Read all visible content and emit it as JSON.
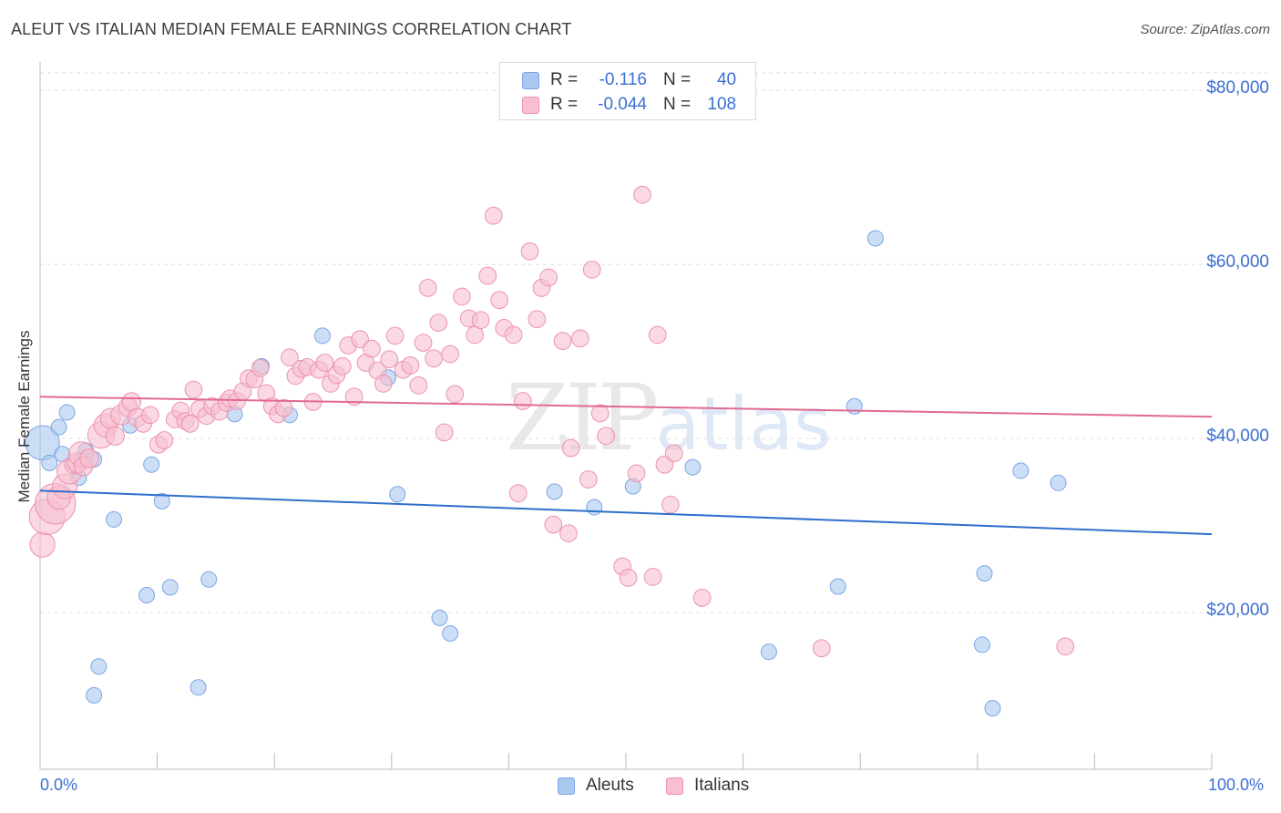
{
  "title": "ALEUT VS ITALIAN MEDIAN FEMALE EARNINGS CORRELATION CHART",
  "source": "Source: ZipAtlas.com",
  "watermark": {
    "zip": "ZIP",
    "atlas": "atlas"
  },
  "legend_top": [
    {
      "series": "Aleuts",
      "r_label": "R =",
      "r_value": "-0.116",
      "n_label": "N =",
      "n_value": "40"
    },
    {
      "series": "Italians",
      "r_label": "R =",
      "r_value": "-0.044",
      "n_label": "N =",
      "n_value": "108"
    }
  ],
  "legend_bottom": [
    "Aleuts",
    "Italians"
  ],
  "colors": {
    "aleut_fill": "#aac8f0",
    "aleut_stroke": "#7aa6e4",
    "aleut_line": "#2f6fcc",
    "italian_fill": "#f7bfd0",
    "italian_stroke": "#ec93b0",
    "italian_line": "#e06a92",
    "axis_text": "#3a6fd4",
    "grid": "#dddddd"
  },
  "chart_data": {
    "type": "scatter",
    "title": "ALEUT VS ITALIAN MEDIAN FEMALE EARNINGS CORRELATION CHART",
    "xlabel": "",
    "ylabel": "Median Female Earnings",
    "xlim": [
      0,
      100
    ],
    "ylim": [
      2000,
      82000
    ],
    "x_tick_labels": {
      "min": "0.0%",
      "max": "100.0%"
    },
    "y_ticks": [
      {
        "value": 20000,
        "label": "$20,000"
      },
      {
        "value": 40000,
        "label": "$40,000"
      },
      {
        "value": 60000,
        "label": "$60,000"
      },
      {
        "value": 80000,
        "label": "$80,000"
      }
    ],
    "series": [
      {
        "name": "Aleuts",
        "trend": {
          "x0": 0,
          "y0": 34000,
          "x1": 100,
          "y1": 29000
        },
        "points": [
          [
            0.2,
            39500,
            2.2
          ],
          [
            0.8,
            37200,
            1
          ],
          [
            1.6,
            41300,
            1
          ],
          [
            1.9,
            38200,
            1
          ],
          [
            2.3,
            43000,
            1
          ],
          [
            3.5,
            37500,
            1
          ],
          [
            3.3,
            35500,
            1
          ],
          [
            3.9,
            38600,
            1
          ],
          [
            4.6,
            37600,
            1
          ],
          [
            5.0,
            13800,
            1
          ],
          [
            4.6,
            10500,
            1
          ],
          [
            6.3,
            30700,
            1
          ],
          [
            7.7,
            41500,
            1
          ],
          [
            9.1,
            22000,
            1
          ],
          [
            9.5,
            37000,
            1
          ],
          [
            10.4,
            32800,
            1
          ],
          [
            11.1,
            22900,
            1
          ],
          [
            13.5,
            11400,
            1
          ],
          [
            14.4,
            23800,
            1
          ],
          [
            16.6,
            42800,
            1
          ],
          [
            18.9,
            48300,
            1
          ],
          [
            21.3,
            42700,
            1
          ],
          [
            24.1,
            51800,
            1
          ],
          [
            29.7,
            47000,
            1
          ],
          [
            30.5,
            33600,
            1
          ],
          [
            34.1,
            19400,
            1
          ],
          [
            35.0,
            17600,
            1
          ],
          [
            43.9,
            33900,
            1
          ],
          [
            47.3,
            32100,
            1
          ],
          [
            50.6,
            34500,
            1
          ],
          [
            55.7,
            36700,
            1
          ],
          [
            62.2,
            15500,
            1
          ],
          [
            68.1,
            23000,
            1
          ],
          [
            69.5,
            43700,
            1
          ],
          [
            71.3,
            63000,
            1
          ],
          [
            80.4,
            16300,
            1
          ],
          [
            80.6,
            24500,
            1
          ],
          [
            81.3,
            9000,
            1
          ],
          [
            83.7,
            36300,
            1
          ],
          [
            86.9,
            34900,
            1
          ]
        ]
      },
      {
        "name": "Italians",
        "trend": {
          "x0": 0,
          "y0": 44800,
          "x1": 100,
          "y1": 42500
        },
        "points": [
          [
            0.2,
            27800,
            1.6
          ],
          [
            0.6,
            31000,
            2.3
          ],
          [
            1.3,
            32500,
            2.6
          ],
          [
            1.6,
            33200,
            1.5
          ],
          [
            2.1,
            34500,
            1.6
          ],
          [
            2.5,
            36200,
            1.6
          ],
          [
            2.9,
            37000,
            1.2
          ],
          [
            3.2,
            37200,
            1.3
          ],
          [
            3.5,
            38200,
            1.6
          ],
          [
            3.7,
            36800,
            1.2
          ],
          [
            4.2,
            37700,
            1.2
          ],
          [
            5.2,
            40400,
            1.7
          ],
          [
            5.6,
            41500,
            1.5
          ],
          [
            6.0,
            42300,
            1.3
          ],
          [
            6.4,
            40300,
            1.2
          ],
          [
            6.9,
            42700,
            1.3
          ],
          [
            7.5,
            43600,
            1.2
          ],
          [
            7.8,
            44200,
            1.2
          ],
          [
            8.3,
            42400,
            1.2
          ],
          [
            8.8,
            41700,
            1.1
          ],
          [
            9.4,
            42700,
            1.1
          ],
          [
            10.1,
            39300,
            1.1
          ],
          [
            10.6,
            39800,
            1.1
          ],
          [
            11.5,
            42200,
            1.1
          ],
          [
            12.0,
            43200,
            1.1
          ],
          [
            12.4,
            42000,
            1.1
          ],
          [
            12.8,
            41700,
            1.1
          ],
          [
            13.1,
            45600,
            1.1
          ],
          [
            13.6,
            43400,
            1.1
          ],
          [
            14.2,
            42600,
            1.1
          ],
          [
            14.7,
            43700,
            1.1
          ],
          [
            15.3,
            43100,
            1.1
          ],
          [
            15.9,
            44100,
            1.1
          ],
          [
            16.2,
            44600,
            1.1
          ],
          [
            16.8,
            44300,
            1.1
          ],
          [
            17.3,
            45400,
            1.1
          ],
          [
            17.8,
            46900,
            1.1
          ],
          [
            18.3,
            46800,
            1.1
          ],
          [
            18.8,
            48100,
            1.1
          ],
          [
            19.3,
            45200,
            1.1
          ],
          [
            19.8,
            43700,
            1.1
          ],
          [
            20.3,
            42800,
            1.1
          ],
          [
            20.8,
            43500,
            1.1
          ],
          [
            21.3,
            49300,
            1.1
          ],
          [
            21.8,
            47200,
            1.1
          ],
          [
            22.3,
            48000,
            1.1
          ],
          [
            22.8,
            48200,
            1.1
          ],
          [
            23.3,
            44200,
            1.1
          ],
          [
            23.8,
            47900,
            1.1
          ],
          [
            24.3,
            48700,
            1.1
          ],
          [
            24.8,
            46300,
            1.1
          ],
          [
            25.3,
            47300,
            1.1
          ],
          [
            25.8,
            48300,
            1.1
          ],
          [
            26.3,
            50700,
            1.1
          ],
          [
            26.8,
            44800,
            1.1
          ],
          [
            27.3,
            51400,
            1.1
          ],
          [
            27.8,
            48700,
            1.1
          ],
          [
            28.3,
            50300,
            1.1
          ],
          [
            28.8,
            47800,
            1.1
          ],
          [
            29.3,
            46300,
            1.1
          ],
          [
            29.8,
            49100,
            1.1
          ],
          [
            30.3,
            51800,
            1.1
          ],
          [
            31.0,
            47900,
            1.1
          ],
          [
            31.6,
            48400,
            1.1
          ],
          [
            32.3,
            46100,
            1.1
          ],
          [
            32.7,
            51000,
            1.1
          ],
          [
            33.1,
            57300,
            1.1
          ],
          [
            33.6,
            49200,
            1.1
          ],
          [
            34.0,
            53300,
            1.1
          ],
          [
            34.5,
            40700,
            1.1
          ],
          [
            35.0,
            49700,
            1.1
          ],
          [
            35.4,
            45100,
            1.1
          ],
          [
            36.0,
            56300,
            1.1
          ],
          [
            36.6,
            53800,
            1.1
          ],
          [
            37.1,
            51900,
            1.1
          ],
          [
            37.6,
            53600,
            1.1
          ],
          [
            38.2,
            58700,
            1.1
          ],
          [
            38.7,
            65600,
            1.1
          ],
          [
            39.2,
            55900,
            1.1
          ],
          [
            39.6,
            52700,
            1.1
          ],
          [
            40.4,
            51900,
            1.1
          ],
          [
            40.8,
            33700,
            1.1
          ],
          [
            41.2,
            44300,
            1.1
          ],
          [
            41.8,
            61500,
            1.1
          ],
          [
            42.4,
            53700,
            1.1
          ],
          [
            42.8,
            57300,
            1.1
          ],
          [
            43.4,
            58500,
            1.1
          ],
          [
            43.8,
            30100,
            1.1
          ],
          [
            44.6,
            51200,
            1.1
          ],
          [
            45.1,
            29100,
            1.1
          ],
          [
            45.3,
            38900,
            1.1
          ],
          [
            46.1,
            51500,
            1.1
          ],
          [
            46.8,
            35300,
            1.1
          ],
          [
            47.1,
            59400,
            1.1
          ],
          [
            47.8,
            42900,
            1.1
          ],
          [
            48.3,
            40300,
            1.1
          ],
          [
            49.7,
            25300,
            1.1
          ],
          [
            50.2,
            24000,
            1.1
          ],
          [
            50.9,
            36000,
            1.1
          ],
          [
            51.4,
            68000,
            1.1
          ],
          [
            52.3,
            24100,
            1.1
          ],
          [
            52.7,
            51900,
            1.1
          ],
          [
            53.3,
            37000,
            1.1
          ],
          [
            53.8,
            32400,
            1.1
          ],
          [
            54.1,
            38300,
            1.1
          ],
          [
            56.5,
            21700,
            1.1
          ],
          [
            66.7,
            15900,
            1.1
          ],
          [
            87.5,
            16100,
            1.1
          ]
        ]
      }
    ]
  }
}
